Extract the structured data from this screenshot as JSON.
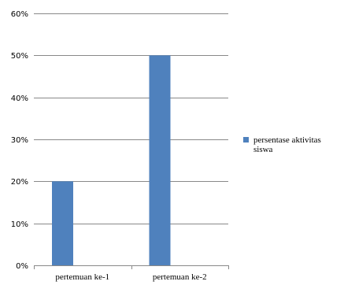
{
  "chart_data": {
    "type": "bar",
    "categories": [
      "pertemuan ke-1",
      "pertemuan ke-2"
    ],
    "series": [
      {
        "name": "persentase aktivitas siswa",
        "values": [
          20,
          50
        ]
      }
    ],
    "ylim": [
      0,
      60
    ],
    "yticks": [
      "0%",
      "10%",
      "20%",
      "30%",
      "40%",
      "50%",
      "60%"
    ],
    "grid": true,
    "legend_position": "right",
    "bar_color": "#4f81bd",
    "grid_color": "#898989"
  }
}
